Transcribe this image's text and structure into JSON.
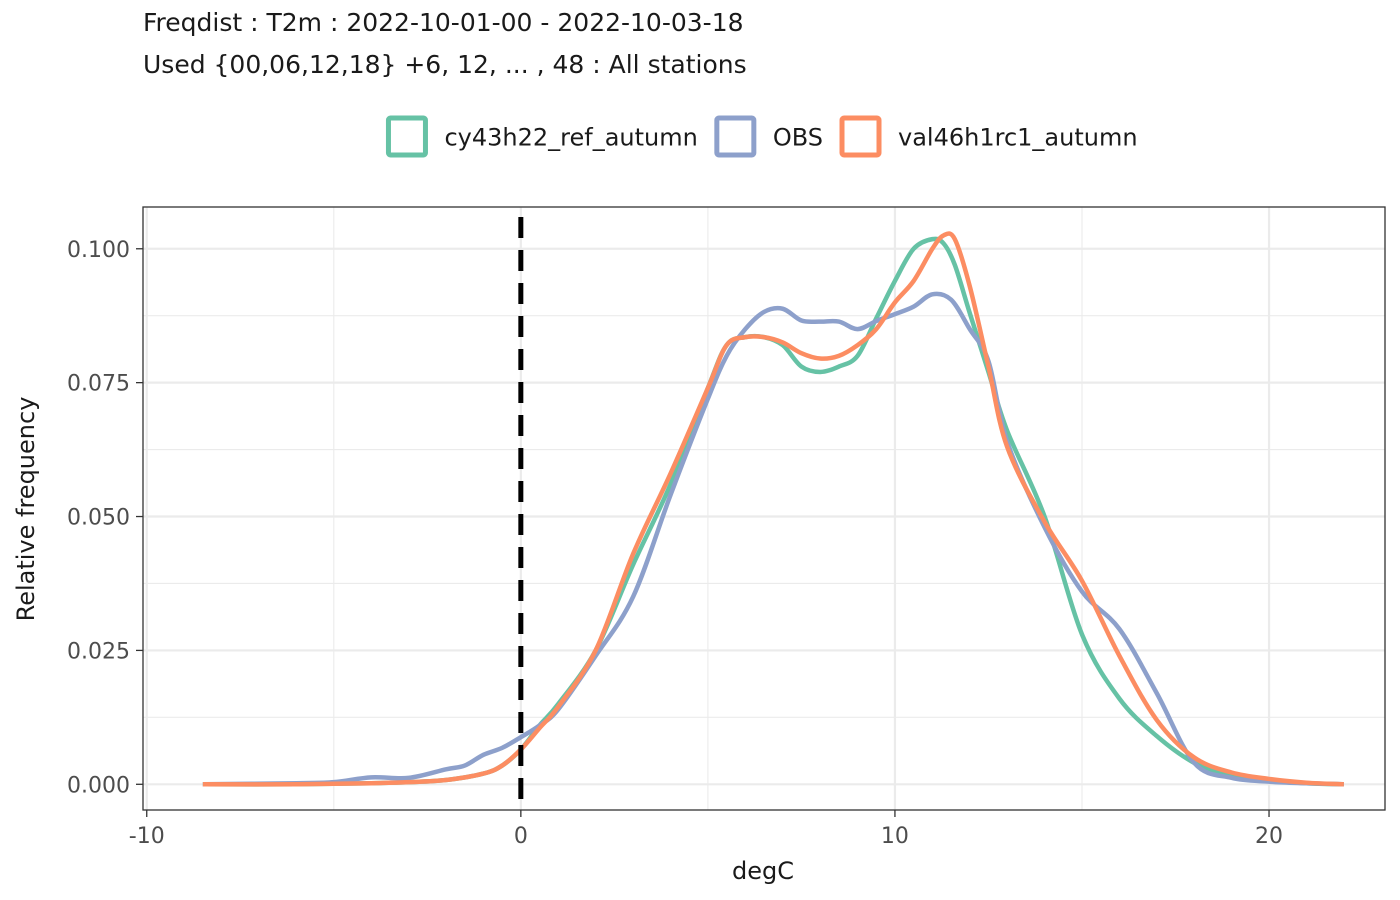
{
  "title": "Freqdist : T2m : 2022-10-01-00 - 2022-10-03-18",
  "subtitle": "Used {00,06,12,18} +6, 12, ... , 48 : All stations",
  "chart_data": {
    "type": "line",
    "xlabel": "degC",
    "ylabel": "Relative frequency",
    "xlim": [
      -10.1,
      23.1
    ],
    "ylim": [
      -0.0048,
      0.1078
    ],
    "x_ticks": [
      -10,
      0,
      10,
      20
    ],
    "x_tick_labels": [
      "-10",
      "0",
      "10",
      "20"
    ],
    "y_ticks": [
      0.0,
      0.025,
      0.05,
      0.075,
      0.1
    ],
    "y_tick_labels": [
      "0.000",
      "0.025",
      "0.050",
      "0.075",
      "0.100"
    ],
    "grid": true,
    "legend_position": "top",
    "vline": {
      "x": 0,
      "style": "dashed",
      "color": "#000000"
    },
    "series": [
      {
        "name": "cy43h22_ref_autumn",
        "color": "#66C2A5",
        "x": [
          -8.5,
          -6,
          -4,
          -3,
          -2,
          -1,
          -0.5,
          0,
          0.5,
          1,
          2,
          3,
          4,
          5,
          5.5,
          6,
          6.5,
          7,
          7.5,
          8,
          8.5,
          9,
          9.5,
          10,
          10.5,
          11,
          11.3,
          11.6,
          12,
          12.5,
          13,
          14,
          15,
          16,
          17,
          18,
          19,
          20,
          21,
          22
        ],
        "y": [
          0.0,
          0.0,
          0.0002,
          0.0004,
          0.0008,
          0.002,
          0.0035,
          0.0065,
          0.011,
          0.015,
          0.025,
          0.041,
          0.056,
          0.074,
          0.082,
          0.0835,
          0.0835,
          0.082,
          0.078,
          0.077,
          0.078,
          0.08,
          0.087,
          0.094,
          0.1,
          0.1018,
          0.101,
          0.097,
          0.088,
          0.077,
          0.066,
          0.05,
          0.028,
          0.016,
          0.009,
          0.004,
          0.0015,
          0.0007,
          0.0002,
          0.0
        ]
      },
      {
        "name": "OBS",
        "color": "#8DA0CB",
        "x": [
          -8.5,
          -6,
          -5,
          -4,
          -3,
          -2,
          -1.5,
          -1,
          -0.5,
          0,
          0.5,
          1,
          2,
          3,
          4,
          5,
          5.5,
          6,
          6.5,
          7,
          7.5,
          8,
          8.5,
          9,
          9.5,
          10,
          10.5,
          11,
          11.5,
          12,
          12.5,
          13,
          14,
          15,
          16,
          17,
          18,
          19,
          20,
          21,
          22
        ],
        "y": [
          0.0,
          0.0002,
          0.0004,
          0.0013,
          0.0012,
          0.0028,
          0.0035,
          0.0055,
          0.0068,
          0.0088,
          0.011,
          0.014,
          0.024,
          0.035,
          0.054,
          0.072,
          0.08,
          0.085,
          0.0882,
          0.0888,
          0.0866,
          0.0864,
          0.0864,
          0.085,
          0.0865,
          0.0878,
          0.0892,
          0.0915,
          0.0905,
          0.085,
          0.079,
          0.064,
          0.048,
          0.036,
          0.029,
          0.017,
          0.004,
          0.0012,
          0.0005,
          0.0002,
          0.0
        ]
      },
      {
        "name": "val46h1rc1_autumn",
        "color": "#FC8D62",
        "x": [
          -8.5,
          -6,
          -4,
          -3,
          -2,
          -1,
          -0.5,
          0,
          0.5,
          1,
          2,
          3,
          4,
          5,
          5.5,
          6,
          6.5,
          7,
          7.5,
          8,
          8.5,
          9,
          9.5,
          10,
          10.5,
          11,
          11.3,
          11.6,
          12,
          12.5,
          13,
          14,
          15,
          16,
          17,
          18,
          19,
          20,
          21,
          22
        ],
        "y": [
          0.0,
          0.0,
          0.0002,
          0.0004,
          0.0008,
          0.002,
          0.0035,
          0.0065,
          0.0105,
          0.0145,
          0.025,
          0.043,
          0.058,
          0.074,
          0.082,
          0.0835,
          0.0835,
          0.0825,
          0.0805,
          0.0795,
          0.08,
          0.082,
          0.085,
          0.09,
          0.094,
          0.1,
          0.1025,
          0.1018,
          0.093,
          0.078,
          0.063,
          0.049,
          0.038,
          0.024,
          0.012,
          0.005,
          0.0022,
          0.001,
          0.0003,
          0.0
        ]
      }
    ]
  }
}
